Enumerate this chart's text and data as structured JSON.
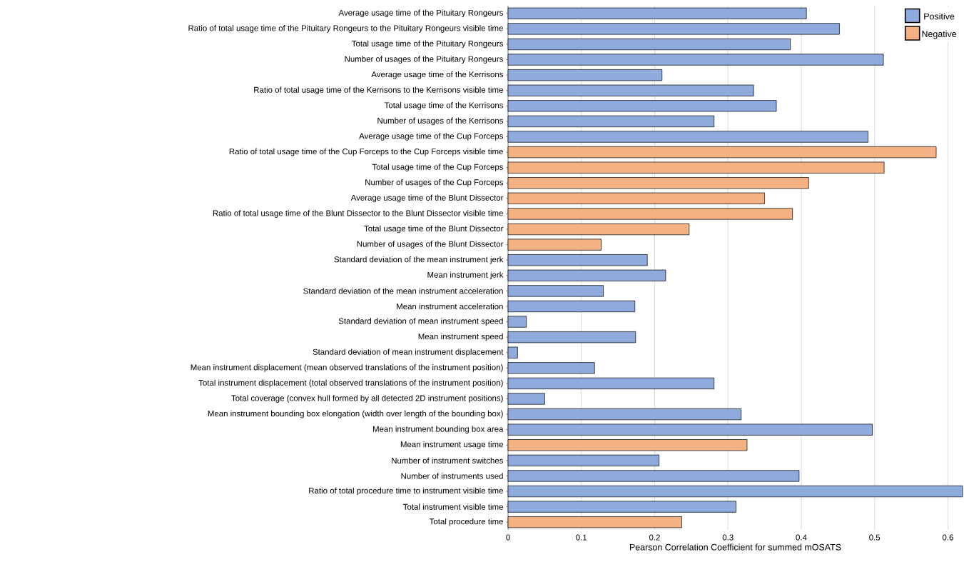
{
  "chart_data": {
    "type": "bar",
    "orientation": "horizontal",
    "xlabel": "Pearson Correlation Coefficient for summed mOSATS",
    "categories": [
      "Average usage time of the Pituitary Rongeurs",
      "Ratio of total usage time of the Pituitary Rongeurs to the Pituitary Rongeurs visible time",
      "Total usage time of the Pituitary Rongeurs",
      "Number of usages of the Pituitary Rongeurs",
      "Average usage time of the Kerrisons",
      "Ratio of total usage time of the Kerrisons to the Kerrisons visible time",
      "Total usage time of the Kerrisons",
      "Number of usages of the Kerrisons",
      "Average usage time of the Cup Forceps",
      "Ratio of total usage time of the Cup Forceps to the Cup Forceps visible time",
      "Total usage time of the Cup Forceps",
      "Number of usages of the Cup Forceps",
      "Average usage time of the Blunt Dissector",
      "Ratio of total usage time of the Blunt Dissector to the Blunt Dissector visible time",
      "Total usage time of the Blunt Dissector",
      "Number of usages of the Blunt Dissector",
      "Standard deviation of the mean instrument jerk",
      "Mean instrument jerk",
      "Standard deviation of the mean instrument acceleration",
      "Mean instrument acceleration",
      "Standard deviation of mean instrument speed",
      "Mean instrument speed",
      "Standard deviation of mean instrument displacement",
      "Mean instrument displacement (mean observed translations of the instrument position)",
      "Total instrument displacement (total observed translations of the instrument position)",
      "Total coverage (convex hull formed by all detected 2D instrument positions)",
      "Mean instrument bounding box elongation (width over length of the bounding box)",
      "Mean instrument bounding box area",
      "Mean instrument usage time",
      "Number of instrument switches",
      "Number of instruments used",
      "Ratio of total procedure time to instrument visible time",
      "Total instrument visible time",
      "Total procedure time"
    ],
    "series": [
      {
        "name": "Positive",
        "color": "#8faadc",
        "values": [
          0.407,
          0.452,
          0.385,
          0.512,
          0.21,
          0.335,
          0.366,
          0.281,
          0.491,
          null,
          null,
          null,
          null,
          null,
          null,
          null,
          0.19,
          0.215,
          0.13,
          0.173,
          0.025,
          0.174,
          0.013,
          0.118,
          0.281,
          0.05,
          0.318,
          0.497,
          null,
          0.206,
          0.397,
          0.62,
          0.311,
          null
        ]
      },
      {
        "name": "Negative",
        "color": "#f4b183",
        "values": [
          null,
          null,
          null,
          null,
          null,
          null,
          null,
          null,
          null,
          0.584,
          0.513,
          0.41,
          0.35,
          0.388,
          0.247,
          0.127,
          null,
          null,
          null,
          null,
          null,
          null,
          null,
          null,
          null,
          null,
          null,
          null,
          0.326,
          null,
          null,
          null,
          null,
          0.237
        ]
      }
    ],
    "xlim": [
      0,
      0.62
    ],
    "xticks": [
      0,
      0.1,
      0.2,
      0.3,
      0.4,
      0.5,
      0.6
    ],
    "grid": "x",
    "legend": "top right"
  }
}
